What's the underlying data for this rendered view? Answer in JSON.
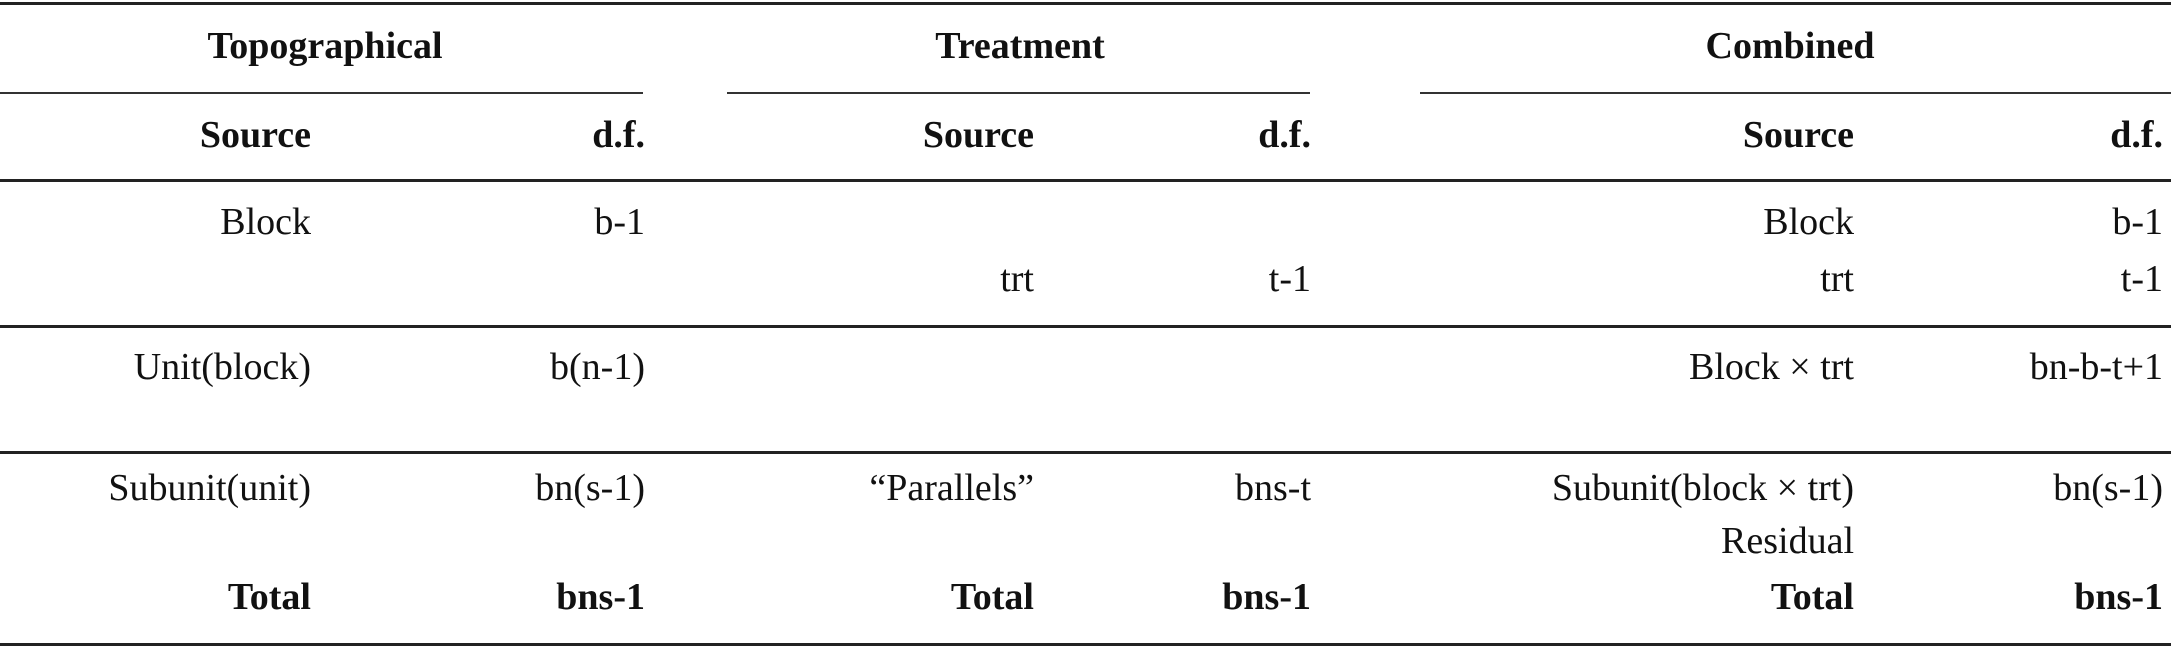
{
  "groups": [
    {
      "title": "Topographical"
    },
    {
      "title": "Treatment"
    },
    {
      "title": "Combined"
    }
  ],
  "col_headers": {
    "source": "Source",
    "df": "d.f."
  },
  "topographical": {
    "block": {
      "source": "Block",
      "df": "b-1"
    },
    "unit": {
      "source": "Unit(block)",
      "df": "b(n-1)"
    },
    "subunit": {
      "source": "Subunit(unit)",
      "df": "bn(s-1)"
    },
    "total": {
      "source": "Total",
      "df": "bns-1"
    }
  },
  "treatment": {
    "trt": {
      "source": "trt",
      "df": "t-1"
    },
    "parallels": {
      "source": "“Parallels”",
      "df": "bns-t"
    },
    "total": {
      "source": "Total",
      "df": "bns-1"
    }
  },
  "combined": {
    "block": {
      "source": "Block",
      "df": "b-1"
    },
    "trt": {
      "source": "trt",
      "df": "t-1"
    },
    "block_trt": {
      "source": "Block × trt",
      "df": "bn-b-t+1"
    },
    "subunit": {
      "source": "Subunit(block × trt)",
      "df": "bn(s-1)"
    },
    "residual": {
      "source": "Residual"
    },
    "total": {
      "source": "Total",
      "df": "bns-1"
    }
  }
}
